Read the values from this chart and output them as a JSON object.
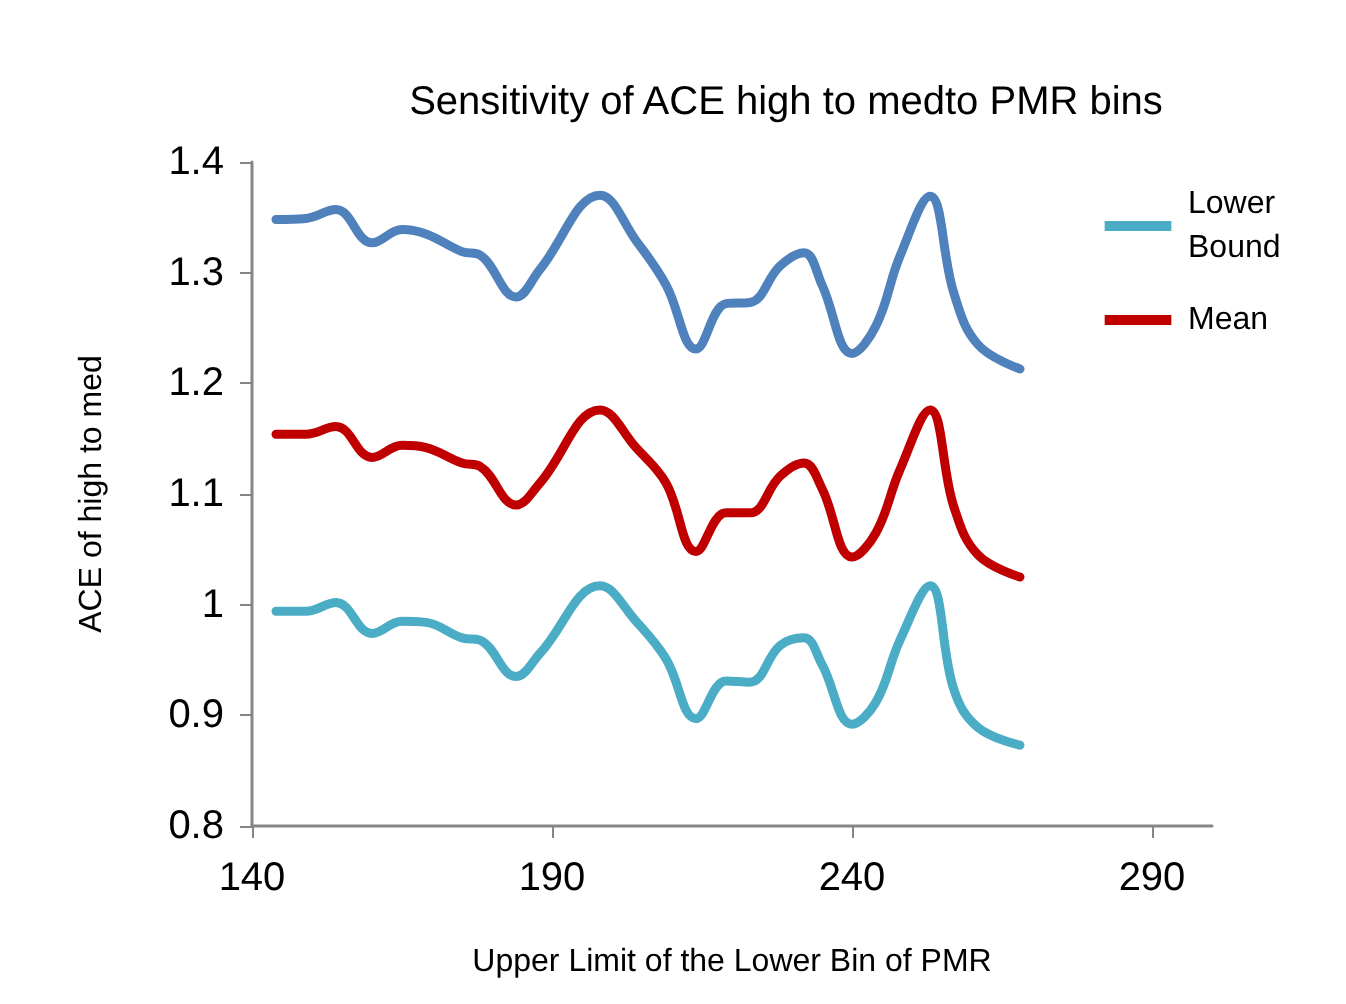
{
  "chart_data": {
    "type": "line",
    "title": "Sensitivity of ACE high to medto PMR bins",
    "xlabel": "Upper Limit of the Lower Bin of PMR",
    "ylabel": "ACE of high to med",
    "xlim": [
      140,
      300
    ],
    "xticks": [
      140,
      190,
      240,
      290
    ],
    "ylim": [
      0.8,
      1.4
    ],
    "yticks": [
      0.8,
      0.9,
      1,
      1.1,
      1.2,
      1.3,
      1.4
    ],
    "grid": false,
    "legend": "top right",
    "marker": "none",
    "line_style": "solid",
    "x": [
      144,
      149,
      154,
      160,
      165,
      169,
      175,
      178,
      184,
      188,
      198,
      204,
      209,
      214,
      219,
      223,
      228,
      232,
      235,
      240,
      244,
      248,
      253,
      257,
      261,
      268
    ],
    "series": [
      {
        "color": "#4f81bd",
        "values": [
          1.348,
          1.349,
          1.357,
          1.327,
          1.339,
          1.335,
          1.319,
          1.316,
          1.278,
          1.303,
          1.37,
          1.329,
          1.289,
          1.231,
          1.272,
          1.273,
          1.306,
          1.318,
          1.289,
          1.227,
          1.252,
          1.315,
          1.369,
          1.281,
          1.235,
          1.213
        ]
      },
      {
        "name": "Lower Bound",
        "color": "#4bacc6",
        "values": [
          0.994,
          0.994,
          1.002,
          0.974,
          0.985,
          0.984,
          0.97,
          0.968,
          0.935,
          0.956,
          1.017,
          0.985,
          0.951,
          0.897,
          0.931,
          0.93,
          0.963,
          0.97,
          0.946,
          0.892,
          0.912,
          0.968,
          1.017,
          0.923,
          0.889,
          0.873
        ]
      },
      {
        "name": "Mean",
        "color": "#c00000",
        "values": [
          1.154,
          1.154,
          1.161,
          1.133,
          1.144,
          1.142,
          1.128,
          1.125,
          1.09,
          1.11,
          1.176,
          1.142,
          1.11,
          1.048,
          1.083,
          1.083,
          1.116,
          1.128,
          1.105,
          1.043,
          1.065,
          1.122,
          1.176,
          1.088,
          1.045,
          1.025
        ]
      }
    ]
  }
}
